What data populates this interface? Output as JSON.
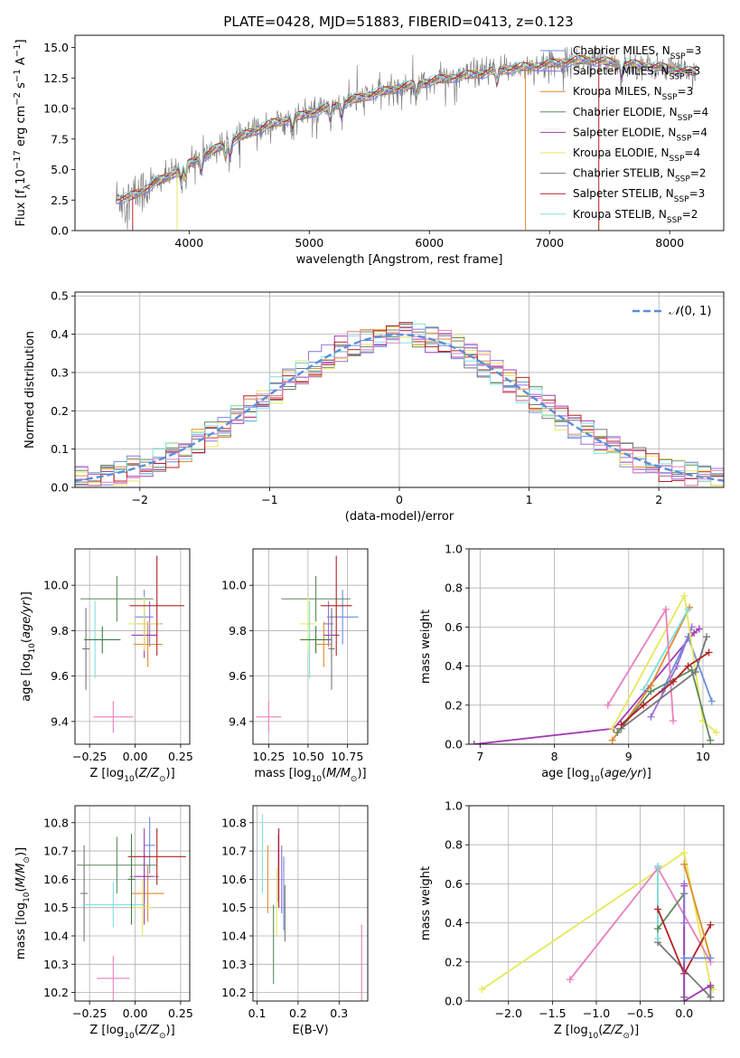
{
  "figure_title": "PLATE=0428, MJD=51883, FIBERID=0413, z=0.123",
  "colors": {
    "Chabrier MILES": "#6b8de0",
    "Salpeter MILES": "#9370db",
    "Kroupa MILES": "#e08a2e",
    "Chabrier ELODIE": "#5e8a5e",
    "Salpeter ELODIE": "#a23bb5",
    "Kroupa ELODIE": "#e6e85a",
    "Chabrier STELIB": "#777777",
    "Salpeter STELIB": "#b22222",
    "Kroupa STELIB": "#7fe0e0",
    "pink": "#e87fbf",
    "normal": "#5b8ddb"
  },
  "chart_data": [
    {
      "id": "spectrum",
      "type": "line",
      "title": "PLATE=0428, MJD=51883, FIBERID=0413, z=0.123",
      "xlabel": "wavelength [Angstrom, rest frame]",
      "ylabel": "Flux [f_λ 10^-17 erg cm^-2 s^-1 A^-1]",
      "xlim": [
        3050,
        8450
      ],
      "ylim": [
        0,
        16
      ],
      "xticks": [
        4000,
        5000,
        6000,
        7000,
        8000
      ],
      "yticks": [
        0.0,
        2.5,
        5.0,
        7.5,
        10.0,
        12.5,
        15.0
      ],
      "grid": false,
      "legend_position": "top-right",
      "continuum": {
        "x": [
          3390,
          3500,
          3600,
          3700,
          3800,
          3950,
          4100,
          4300,
          4500,
          4700,
          4900,
          5100,
          5300,
          5500,
          5700,
          5900,
          6100,
          6300,
          6500,
          6700,
          6900,
          7100,
          7300,
          7500,
          7700,
          7900,
          8100,
          8200
        ],
        "y": [
          2.6,
          2.7,
          3.2,
          3.8,
          4.3,
          5.2,
          6.0,
          7.1,
          8.0,
          8.8,
          9.3,
          9.9,
          10.5,
          11.1,
          11.6,
          12.0,
          12.4,
          12.7,
          13.0,
          13.3,
          13.5,
          13.8,
          14.0,
          13.8,
          13.6,
          13.4,
          13.1,
          13.0
        ]
      },
      "series": [
        {
          "name": "Chabrier MILES",
          "nssp": "3"
        },
        {
          "name": "Salpeter MILES",
          "nssp": "3"
        },
        {
          "name": "Kroupa MILES",
          "nssp": "3"
        },
        {
          "name": "Chabrier ELODIE",
          "nssp": "4"
        },
        {
          "name": "Salpeter ELODIE",
          "nssp": "4"
        },
        {
          "name": "Kroupa ELODIE",
          "nssp": "4"
        },
        {
          "name": "Chabrier STELIB",
          "nssp": "2"
        },
        {
          "name": "Salpeter STELIB",
          "nssp": "3"
        },
        {
          "name": "Kroupa STELIB",
          "nssp": "2"
        }
      ]
    },
    {
      "id": "residuals",
      "type": "line",
      "xlabel": "(data-model)/error",
      "ylabel": "Normed distribution",
      "xlim": [
        -2.5,
        2.5
      ],
      "ylim": [
        0,
        0.51
      ],
      "xticks": [
        -2,
        -1,
        0,
        1,
        2
      ],
      "yticks": [
        0.0,
        0.1,
        0.2,
        0.3,
        0.4,
        0.5
      ],
      "grid": true,
      "legend": [
        "N(0,1)"
      ],
      "legend_position": "top-right",
      "bin_width": 0.1,
      "x_start": -2.5
    },
    {
      "id": "age_vs_Z",
      "type": "scatter",
      "xlabel": "Z [log10(Z/Z⊙)]",
      "ylabel": "age [log10(age/yr)]",
      "xlim": [
        -0.33,
        0.3
      ],
      "ylim": [
        9.3,
        10.16
      ],
      "xticks": [
        -0.25,
        0.0,
        0.25
      ],
      "yticks": [
        9.4,
        9.6,
        9.8,
        10.0
      ],
      "grid": true,
      "points": [
        {
          "name": "Chabrier MILES",
          "x": 0.05,
          "xerr": 0.05,
          "y": 9.86,
          "yerr": 0.12
        },
        {
          "name": "Salpeter MILES",
          "x": 0.08,
          "xerr": 0.07,
          "y": 9.83,
          "yerr": 0.1
        },
        {
          "name": "Kroupa MILES",
          "x": 0.07,
          "xerr": 0.08,
          "y": 9.74,
          "yerr": 0.1
        },
        {
          "name": "Chabrier ELODIE",
          "x": -0.1,
          "xerr": 0.2,
          "y": 9.94,
          "yerr": 0.1
        },
        {
          "name": "Salpeter ELODIE",
          "x": 0.05,
          "xerr": 0.07,
          "y": 9.78,
          "yerr": 0.1
        },
        {
          "name": "Kroupa ELODIE",
          "x": 0.05,
          "xerr": 0.09,
          "y": 9.83,
          "yerr": 0.12
        },
        {
          "name": "Chabrier STELIB",
          "x": -0.27,
          "xerr": 0.02,
          "y": 9.72,
          "yerr": 0.18
        },
        {
          "name": "Salpeter STELIB",
          "x": 0.12,
          "xerr": 0.15,
          "y": 9.91,
          "yerr": 0.22
        },
        {
          "name": "Kroupa STELIB",
          "x": -0.22,
          "xerr": 0.06,
          "y": 9.76,
          "yerr": 0.17
        },
        {
          "name": "pink",
          "x": -0.12,
          "xerr": 0.11,
          "y": 9.42,
          "yerr": 0.07
        },
        {
          "name": "green2",
          "x": -0.18,
          "xerr": 0.1,
          "y": 9.76,
          "yerr": 0.06
        }
      ]
    },
    {
      "id": "age_vs_mass",
      "type": "scatter",
      "xlabel": "mass [log10(M/M⊙)]",
      "ylabel": "",
      "xlim": [
        10.15,
        10.88
      ],
      "ylim": [
        9.3,
        10.16
      ],
      "xticks": [
        10.25,
        10.5,
        10.75
      ],
      "yticks": [
        9.4,
        9.6,
        9.8,
        10.0
      ],
      "grid": true,
      "points": [
        {
          "name": "Chabrier MILES",
          "x": 10.72,
          "xerr": 0.1,
          "y": 9.86,
          "yerr": 0.12
        },
        {
          "name": "Salpeter MILES",
          "x": 10.63,
          "xerr": 0.03,
          "y": 9.83,
          "yerr": 0.1
        },
        {
          "name": "Kroupa MILES",
          "x": 10.6,
          "xerr": 0.05,
          "y": 9.74,
          "yerr": 0.1
        },
        {
          "name": "Chabrier ELODIE",
          "x": 10.55,
          "xerr": 0.22,
          "y": 9.94,
          "yerr": 0.1
        },
        {
          "name": "Salpeter ELODIE",
          "x": 10.65,
          "xerr": 0.05,
          "y": 9.78,
          "yerr": 0.1
        },
        {
          "name": "Kroupa ELODIE",
          "x": 10.5,
          "xerr": 0.05,
          "y": 9.83,
          "yerr": 0.12
        },
        {
          "name": "Chabrier STELIB",
          "x": 10.65,
          "xerr": 0.02,
          "y": 9.72,
          "yerr": 0.18
        },
        {
          "name": "Salpeter STELIB",
          "x": 10.68,
          "xerr": 0.1,
          "y": 9.91,
          "yerr": 0.22
        },
        {
          "name": "Kroupa STELIB",
          "x": 10.51,
          "xerr": 0.01,
          "y": 9.76,
          "yerr": 0.17
        },
        {
          "name": "pink",
          "x": 10.25,
          "xerr": 0.08,
          "y": 9.42,
          "yerr": 0.07
        },
        {
          "name": "green2",
          "x": 10.55,
          "xerr": 0.1,
          "y": 9.76,
          "yerr": 0.06
        }
      ]
    },
    {
      "id": "weight_vs_age",
      "type": "line",
      "xlabel": "age [log10(age/yr)]",
      "ylabel": "mass weight",
      "xlim": [
        6.85,
        10.28
      ],
      "ylim": [
        0,
        1.0
      ],
      "xticks": [
        7,
        8,
        9,
        10
      ],
      "yticks": [
        0.0,
        0.2,
        0.4,
        0.6,
        0.8,
        1.0
      ],
      "grid": true,
      "series": [
        {
          "name": "Salpeter ELODIE",
          "x": [
            6.92,
            8.8,
            9.88,
            9.95
          ],
          "y": [
            0.0,
            0.08,
            0.57,
            0.59
          ]
        },
        {
          "name": "Kroupa MILES",
          "x": [
            8.78,
            9.3,
            9.82
          ],
          "y": [
            0.02,
            0.3,
            0.7
          ]
        },
        {
          "name": "Chabrier MILES",
          "x": [
            9.45,
            9.8,
            10.12
          ],
          "y": [
            0.27,
            0.55,
            0.22
          ]
        },
        {
          "name": "Salpeter MILES",
          "x": [
            9.3,
            9.65,
            9.85
          ],
          "y": [
            0.14,
            0.4,
            0.6
          ]
        },
        {
          "name": "Kroupa ELODIE",
          "x": [
            8.78,
            9.75,
            10.0,
            10.18
          ],
          "y": [
            0.08,
            0.76,
            0.12,
            0.06
          ]
        },
        {
          "name": "Kroupa STELIB",
          "x": [
            9.2,
            9.8
          ],
          "y": [
            0.28,
            0.69
          ]
        },
        {
          "name": "pink",
          "x": [
            8.72,
            9.5,
            9.6
          ],
          "y": [
            0.2,
            0.69,
            0.12
          ]
        },
        {
          "name": "Chabrier ELODIE",
          "x": [
            8.85,
            9.3,
            9.85,
            10.1
          ],
          "y": [
            0.06,
            0.27,
            0.38,
            0.02
          ]
        },
        {
          "name": "Chabrier STELIB",
          "x": [
            8.9,
            9.9,
            10.05
          ],
          "y": [
            0.08,
            0.37,
            0.55
          ]
        },
        {
          "name": "Salpeter STELIB",
          "x": [
            8.9,
            9.2,
            9.6,
            9.8,
            10.08
          ],
          "y": [
            0.1,
            0.2,
            0.32,
            0.4,
            0.47
          ]
        }
      ]
    },
    {
      "id": "mass_vs_Z",
      "type": "scatter",
      "xlabel": "Z [log10(Z/Z⊙)]",
      "ylabel": "mass [log10(M/M⊙)]",
      "xlim": [
        -0.33,
        0.3
      ],
      "ylim": [
        10.17,
        10.86
      ],
      "xticks": [
        -0.25,
        0.0,
        0.25
      ],
      "yticks": [
        10.2,
        10.3,
        10.4,
        10.5,
        10.6,
        10.7,
        10.8
      ],
      "grid": true,
      "points": [
        {
          "name": "Chabrier MILES",
          "x": 0.08,
          "xerr": 0.03,
          "y": 10.72,
          "yerr": 0.1
        },
        {
          "name": "Salpeter MILES",
          "x": 0.05,
          "xerr": 0.08,
          "y": 10.61,
          "yerr": 0.08
        },
        {
          "name": "Kroupa MILES",
          "x": 0.07,
          "xerr": 0.09,
          "y": 10.55,
          "yerr": 0.1
        },
        {
          "name": "Chabrier ELODIE",
          "x": -0.1,
          "xerr": 0.22,
          "y": 10.65,
          "yerr": 0.1
        },
        {
          "name": "Salpeter ELODIE",
          "x": 0.05,
          "xerr": 0.05,
          "y": 10.61,
          "yerr": 0.17
        },
        {
          "name": "Kroupa ELODIE",
          "x": 0.04,
          "xerr": 0.06,
          "y": 10.5,
          "yerr": 0.1
        },
        {
          "name": "Chabrier STELIB",
          "x": -0.28,
          "xerr": 0.02,
          "y": 10.55,
          "yerr": 0.17
        },
        {
          "name": "Salpeter STELIB",
          "x": 0.12,
          "xerr": 0.16,
          "y": 10.68,
          "yerr": 0.1
        },
        {
          "name": "Kroupa STELIB",
          "x": -0.12,
          "xerr": 0.17,
          "y": 10.51,
          "yerr": 0.08
        },
        {
          "name": "pink",
          "x": -0.12,
          "xerr": 0.09,
          "y": 10.25,
          "yerr": 0.08
        },
        {
          "name": "green2",
          "x": -0.02,
          "xerr": 0.02,
          "y": 10.6,
          "yerr": 0.16
        }
      ]
    },
    {
      "id": "mass_vs_ebv",
      "type": "scatter",
      "xlabel": "E(B-V)",
      "ylabel": "",
      "xlim": [
        0.09,
        0.37
      ],
      "ylim": [
        10.17,
        10.86
      ],
      "xticks": [
        0.1,
        0.2,
        0.3
      ],
      "yticks": [
        10.2,
        10.3,
        10.4,
        10.5,
        10.6,
        10.7,
        10.8
      ],
      "grid": true,
      "points": [
        {
          "name": "Chabrier MILES",
          "x": 0.165,
          "xerr": 0.0,
          "y": 10.55,
          "yerr": 0.13
        },
        {
          "name": "Salpeter MILES",
          "x": 0.16,
          "xerr": 0.0,
          "y": 10.6,
          "yerr": 0.12
        },
        {
          "name": "Kroupa MILES",
          "x": 0.126,
          "xerr": 0.0,
          "y": 10.6,
          "yerr": 0.12
        },
        {
          "name": "Chabrier ELODIE",
          "x": 0.14,
          "xerr": 0.0,
          "y": 10.37,
          "yerr": 0.14
        },
        {
          "name": "Salpeter ELODIE",
          "x": 0.152,
          "xerr": 0.0,
          "y": 10.64,
          "yerr": 0.12
        },
        {
          "name": "Kroupa ELODIE",
          "x": 0.148,
          "xerr": 0.0,
          "y": 10.52,
          "yerr": 0.12
        },
        {
          "name": "Chabrier STELIB",
          "x": 0.168,
          "xerr": 0.0,
          "y": 10.48,
          "yerr": 0.1
        },
        {
          "name": "Salpeter STELIB",
          "x": 0.153,
          "xerr": 0.0,
          "y": 10.64,
          "yerr": 0.14
        },
        {
          "name": "Kroupa STELIB",
          "x": 0.113,
          "xerr": 0.0,
          "y": 10.69,
          "yerr": 0.14
        },
        {
          "name": "pink",
          "x": 0.355,
          "xerr": 0.0,
          "y": 10.3,
          "yerr": 0.14
        }
      ]
    },
    {
      "id": "weight_vs_Z",
      "type": "line",
      "xlabel": "Z [log10(Z/Z⊙)]",
      "ylabel": "mass weight",
      "xlim": [
        -2.45,
        0.45
      ],
      "ylim": [
        0,
        1.0
      ],
      "xticks": [
        -2.0,
        -1.5,
        -1.0,
        -0.5,
        0.0
      ],
      "yticks": [
        0.0,
        0.2,
        0.4,
        0.6,
        0.8,
        1.0
      ],
      "grid": true,
      "series": [
        {
          "name": "Kroupa ELODIE",
          "x": [
            -2.3,
            0.0,
            0.3,
            0.33
          ],
          "y": [
            0.06,
            0.76,
            0.08,
            0.06
          ]
        },
        {
          "name": "pink",
          "x": [
            -1.3,
            -0.3,
            0.3
          ],
          "y": [
            0.11,
            0.68,
            0.2
          ]
        },
        {
          "name": "Chabrier STELIB",
          "x": [
            -0.3,
            -0.3,
            0.3,
            0.3
          ],
          "y": [
            0.69,
            0.3,
            0.02,
            0.07
          ]
        },
        {
          "name": "Kroupa STELIB",
          "x": [
            -0.3,
            -0.3
          ],
          "y": [
            0.69,
            0.32
          ]
        },
        {
          "name": "Chabrier ELODIE",
          "x": [
            -0.3,
            0.0,
            0.0
          ],
          "y": [
            0.37,
            0.55,
            0.02
          ]
        },
        {
          "name": "Salpeter STELIB",
          "x": [
            -0.3,
            0.0,
            0.3
          ],
          "y": [
            0.47,
            0.14,
            0.39
          ]
        },
        {
          "name": "Salpeter ELODIE",
          "x": [
            0.0,
            0.0,
            0.3
          ],
          "y": [
            0.59,
            0.0,
            0.08
          ]
        },
        {
          "name": "Kroupa MILES",
          "x": [
            0.0,
            0.3
          ],
          "y": [
            0.7,
            0.22
          ]
        },
        {
          "name": "Chabrier MILES",
          "x": [
            0.0,
            0.3
          ],
          "y": [
            0.22,
            0.22
          ]
        },
        {
          "name": "Salpeter MILES",
          "x": [
            0.0,
            0.0
          ],
          "y": [
            0.4,
            0.6
          ]
        }
      ]
    }
  ]
}
